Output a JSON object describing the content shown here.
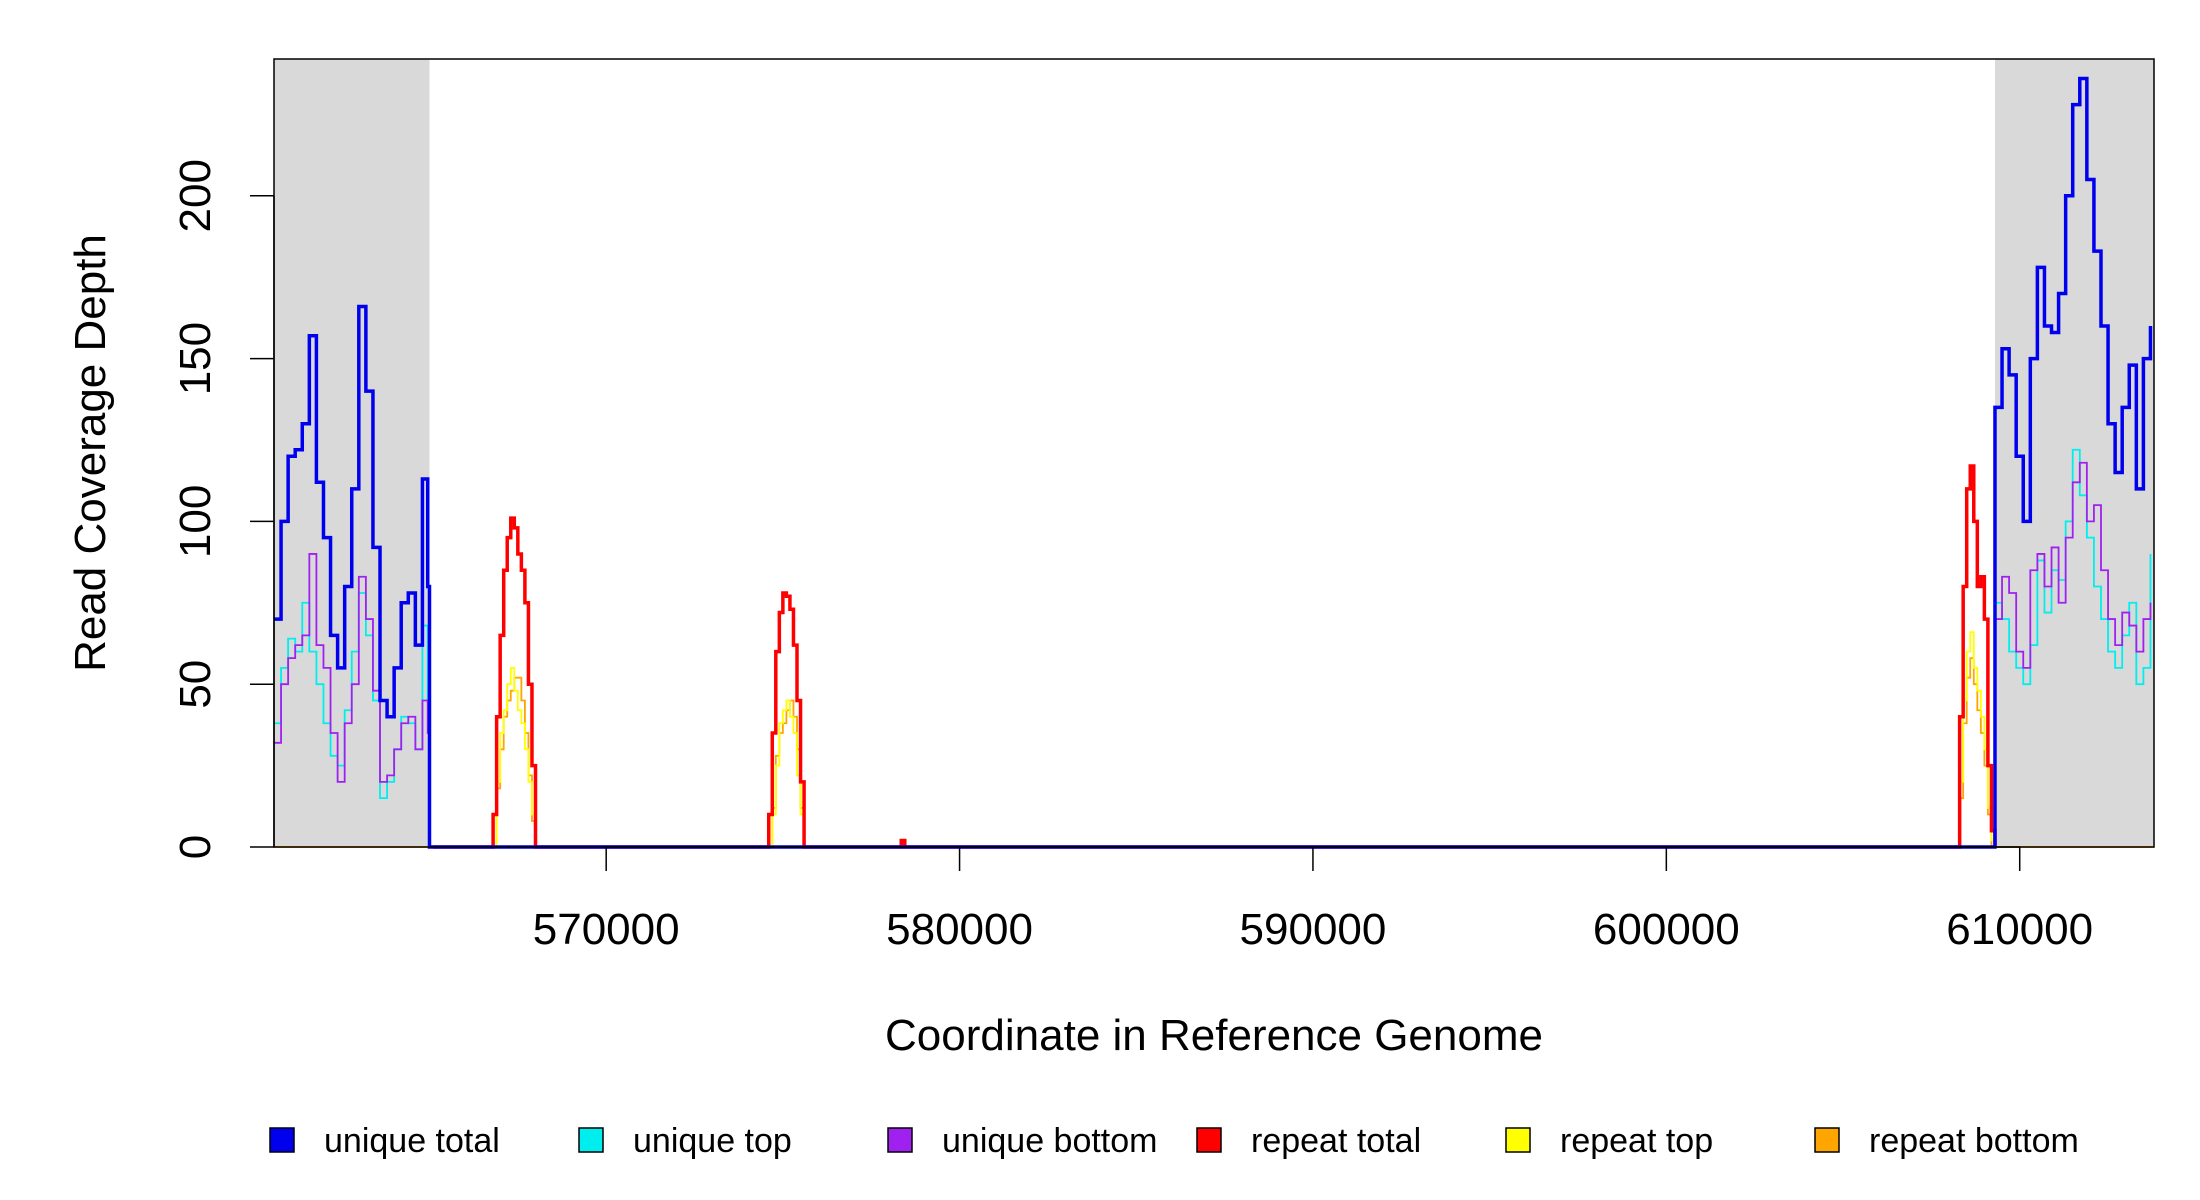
{
  "chart_data": {
    "type": "line",
    "xlabel": "Coordinate in Reference Genome",
    "ylabel": "Read Coverage Depth",
    "xlim": [
      560600,
      613800
    ],
    "ylim": [
      0,
      242
    ],
    "x_ticks": [
      570000,
      580000,
      590000,
      600000,
      610000
    ],
    "x_tick_labels": [
      "570000",
      "580000",
      "590000",
      "600000",
      "610000"
    ],
    "y_ticks": [
      0,
      50,
      100,
      150,
      200
    ],
    "y_tick_labels": [
      "0",
      "50",
      "100",
      "150",
      "200"
    ],
    "shaded_regions": [
      [
        560600,
        565000
      ],
      [
        609300,
        613800
      ]
    ],
    "shade_color": "#d9d9d9",
    "legend_position": "bottom",
    "series": [
      {
        "name": "unique total",
        "color": "#0000ee",
        "x": [
          560600,
          560800,
          561000,
          561200,
          561400,
          561600,
          561800,
          562000,
          562200,
          562400,
          562600,
          562800,
          563000,
          563200,
          563400,
          563600,
          563800,
          564000,
          564200,
          564400,
          564600,
          564800,
          564950,
          565000,
          565050,
          609200,
          609300,
          609500,
          609700,
          609900,
          610100,
          610300,
          610500,
          610700,
          610900,
          611100,
          611300,
          611500,
          611700,
          611900,
          612100,
          612300,
          612500,
          612700,
          612900,
          613100,
          613300,
          613500,
          613700
        ],
        "y": [
          70,
          100,
          120,
          122,
          130,
          157,
          112,
          95,
          65,
          55,
          80,
          110,
          166,
          140,
          92,
          45,
          40,
          55,
          75,
          78,
          62,
          113,
          80,
          0,
          0,
          0,
          135,
          153,
          145,
          120,
          100,
          150,
          178,
          160,
          158,
          170,
          200,
          228,
          236,
          205,
          183,
          160,
          130,
          115,
          135,
          148,
          110,
          150,
          160
        ]
      },
      {
        "name": "unique top",
        "color": "#00eeee",
        "x": [
          560600,
          560800,
          561000,
          561200,
          561400,
          561600,
          561800,
          562000,
          562200,
          562400,
          562600,
          562800,
          563000,
          563200,
          563400,
          563600,
          563800,
          564000,
          564200,
          564400,
          564600,
          564800,
          564950,
          565000,
          565050,
          609200,
          609300,
          609500,
          609700,
          609900,
          610100,
          610300,
          610500,
          610700,
          610900,
          611100,
          611300,
          611500,
          611700,
          611900,
          612100,
          612300,
          612500,
          612700,
          612900,
          613100,
          613300,
          613500,
          613700
        ],
        "y": [
          38,
          55,
          64,
          60,
          75,
          60,
          50,
          38,
          28,
          25,
          42,
          60,
          78,
          65,
          45,
          15,
          20,
          30,
          40,
          38,
          30,
          68,
          45,
          0,
          0,
          0,
          75,
          70,
          60,
          55,
          50,
          62,
          88,
          72,
          85,
          82,
          100,
          122,
          108,
          95,
          80,
          70,
          60,
          55,
          65,
          75,
          50,
          55,
          90
        ]
      },
      {
        "name": "unique bottom",
        "color": "#a020f0",
        "x": [
          560600,
          560800,
          561000,
          561200,
          561400,
          561600,
          561800,
          562000,
          562200,
          562400,
          562600,
          562800,
          563000,
          563200,
          563400,
          563600,
          563800,
          564000,
          564200,
          564400,
          564600,
          564800,
          564950,
          565000,
          565050,
          609200,
          609300,
          609500,
          609700,
          609900,
          610100,
          610300,
          610500,
          610700,
          610900,
          611100,
          611300,
          611500,
          611700,
          611900,
          612100,
          612300,
          612500,
          612700,
          612900,
          613100,
          613300,
          613500,
          613700
        ],
        "y": [
          32,
          50,
          58,
          62,
          65,
          90,
          62,
          55,
          35,
          20,
          38,
          50,
          83,
          70,
          48,
          20,
          22,
          30,
          38,
          40,
          30,
          45,
          35,
          0,
          0,
          0,
          70,
          83,
          78,
          60,
          55,
          85,
          90,
          80,
          92,
          75,
          95,
          112,
          118,
          100,
          105,
          85,
          70,
          62,
          72,
          68,
          60,
          70,
          75
        ]
      },
      {
        "name": "repeat total",
        "color": "#ff0000",
        "x": [
          565100,
          566700,
          566800,
          566900,
          567000,
          567100,
          567200,
          567300,
          567400,
          567500,
          567600,
          567700,
          567800,
          567900,
          568000,
          568100,
          574500,
          574600,
          574700,
          574800,
          574900,
          575000,
          575100,
          575200,
          575300,
          575400,
          575500,
          575600,
          575700,
          575800,
          578300,
          578350,
          578400,
          578450,
          608200,
          608300,
          608400,
          608500,
          608600,
          608700,
          608800,
          608900,
          609000,
          609100,
          609200,
          609300
        ],
        "y": [
          0,
          0,
          10,
          40,
          65,
          85,
          95,
          101,
          98,
          90,
          85,
          75,
          50,
          25,
          0,
          0,
          0,
          10,
          35,
          60,
          72,
          78,
          77,
          73,
          62,
          45,
          20,
          0,
          0,
          0,
          0,
          2,
          2,
          0,
          0,
          40,
          80,
          110,
          117,
          100,
          80,
          83,
          70,
          25,
          5,
          0
        ]
      },
      {
        "name": "repeat top",
        "color": "#ffff00",
        "x": [
          565100,
          566800,
          566900,
          567000,
          567100,
          567200,
          567300,
          567400,
          567500,
          567600,
          567700,
          567800,
          567900,
          568000,
          574600,
          574700,
          574800,
          574900,
          575000,
          575100,
          575200,
          575300,
          575400,
          575500,
          575600,
          608200,
          608300,
          608400,
          608500,
          608600,
          608700,
          608800,
          608900,
          609000,
          609100,
          609200,
          609300
        ],
        "y": [
          0,
          0,
          20,
          35,
          42,
          50,
          55,
          48,
          42,
          38,
          30,
          20,
          10,
          0,
          0,
          10,
          25,
          38,
          42,
          45,
          40,
          35,
          22,
          10,
          0,
          0,
          20,
          45,
          60,
          66,
          55,
          48,
          40,
          30,
          12,
          2,
          0
        ]
      },
      {
        "name": "repeat bottom",
        "color": "#ffa500",
        "x": [
          560600,
          566800,
          566900,
          567000,
          567100,
          567200,
          567300,
          567400,
          567500,
          567600,
          567700,
          567800,
          567900,
          568000,
          574600,
          574700,
          574800,
          574900,
          575000,
          575100,
          575200,
          575300,
          575400,
          575500,
          575600,
          608200,
          608300,
          608400,
          608500,
          608600,
          608700,
          608800,
          608900,
          609000,
          609100,
          609200,
          613800
        ],
        "y": [
          0,
          0,
          18,
          30,
          40,
          45,
          48,
          52,
          52,
          45,
          35,
          22,
          8,
          0,
          0,
          12,
          28,
          35,
          38,
          42,
          45,
          40,
          30,
          12,
          0,
          0,
          15,
          38,
          52,
          58,
          50,
          42,
          35,
          25,
          10,
          0,
          0
        ]
      }
    ]
  }
}
